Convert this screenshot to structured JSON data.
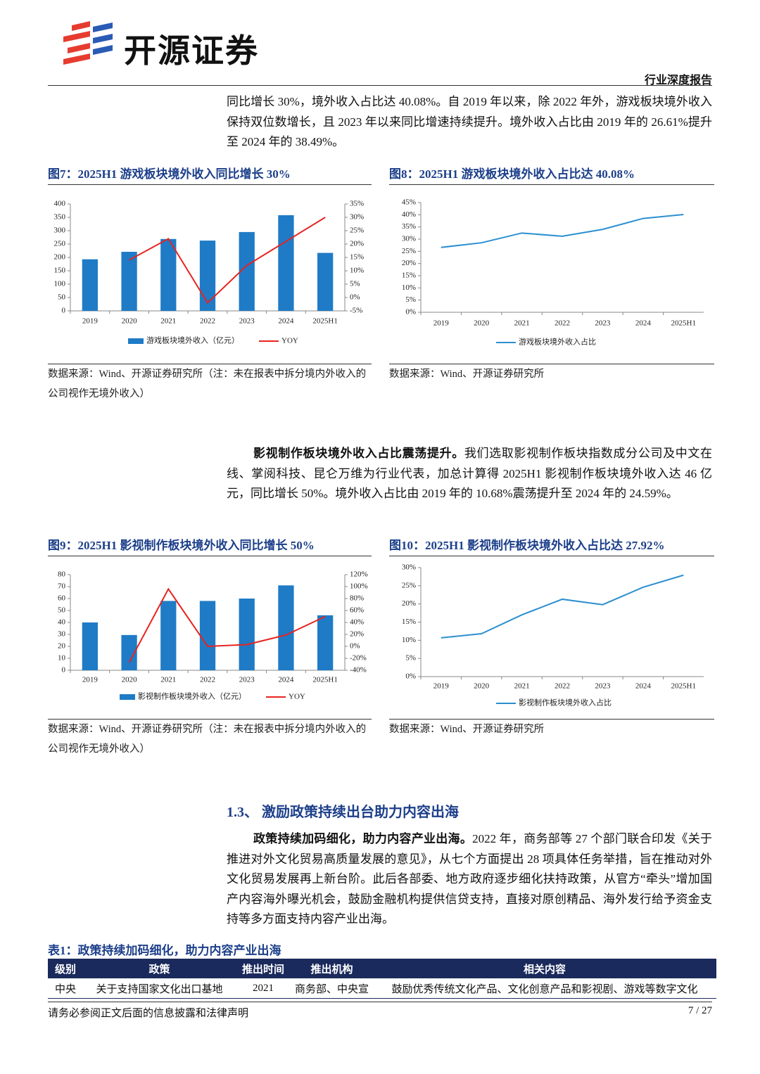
{
  "header": {
    "brand": "开源证券",
    "report_type": "行业深度报告"
  },
  "paragraphs": [
    {
      "text": "同比增长 30%，境外收入占比达 40.08%。自 2019 年以来，除 2022 年外，游戏板块境外收入保持双位数增长，且 2023 年以来同比增速持续提升。境外收入占比由 2019 年的 26.61%提升至 2024 年的 38.49%。"
    },
    {
      "lead": "影视制作板块境外收入占比震荡提升。",
      "text": "我们选取影视制作板块指数成分公司及中文在线、掌阅科技、昆仑万维为行业代表，加总计算得 2025H1 影视制作板块境外收入达 46 亿元，同比增长 50%。境外收入占比由 2019 年的 10.68%震荡提升至 2024 年的 24.59%。"
    },
    {
      "lead": "政策持续加码细化，助力内容产业出海。",
      "text": "2022 年，商务部等 27 个部门联合印发《关于推进对外文化贸易高质量发展的意见》，从七个方面提出 28 项具体任务举措，旨在推动对外文化贸易发展再上新台阶。此后各部委、地方政府逐步细化扶持政策，从官方“牵头”增加国产内容海外曝光机会，鼓励金融机构提供信贷支持，直接对原创精品、海外发行给予资金支持等多方面支持内容产业出海。"
    }
  ],
  "figures": [
    {
      "title": "图7：2025H1 游戏板块境外收入同比增长 30%",
      "source": "数据来源：Wind、开源证券研究所（注：未在报表中拆分境内外收入的公司视作无境外收入）"
    },
    {
      "title": "图8：2025H1 游戏板块境外收入占比达 40.08%",
      "source": "数据来源：Wind、开源证券研究所"
    },
    {
      "title": "图9：2025H1 影视制作板块境外收入同比增长 50%",
      "source": "数据来源：Wind、开源证券研究所（注：未在报表中拆分境内外收入的公司视作无境外收入）"
    },
    {
      "title": "图10：2025H1 影视制作板块境外收入占比达 27.92%",
      "source": "数据来源：Wind、开源证券研究所"
    }
  ],
  "chart_data": [
    {
      "type": "combo",
      "categories": [
        "2019",
        "2020",
        "2021",
        "2022",
        "2023",
        "2024",
        "2025H1"
      ],
      "series": [
        {
          "name": "游戏板块境外收入（亿元）",
          "color": "#1f7bc6",
          "values": [
            193,
            221,
            269,
            263,
            295,
            358,
            217
          ]
        },
        {
          "name": "YOY",
          "color": "#e8231f",
          "axis": "y2",
          "values": [
            null,
            14,
            22,
            -2,
            12,
            21,
            30
          ]
        }
      ],
      "ylim": [
        0,
        400
      ],
      "yticks": [
        0,
        50,
        100,
        150,
        200,
        250,
        300,
        350,
        400
      ],
      "y2lim": [
        -5,
        35
      ],
      "y2ticks": [
        {
          "value": -5,
          "label": "-5%"
        },
        {
          "value": 0,
          "label": "0%"
        },
        {
          "value": 5,
          "label": "5%"
        },
        {
          "value": 10,
          "label": "10%"
        },
        {
          "value": 15,
          "label": "15%"
        },
        {
          "value": 20,
          "label": "20%"
        },
        {
          "value": 25,
          "label": "25%"
        },
        {
          "value": 30,
          "label": "30%"
        },
        {
          "value": 35,
          "label": "35%"
        }
      ]
    },
    {
      "type": "line",
      "categories": [
        "2019",
        "2020",
        "2021",
        "2022",
        "2023",
        "2024",
        "2025H1"
      ],
      "series": [
        {
          "name": "游戏板块境外收入占比",
          "color": "#2b8fd0",
          "values": [
            26.61,
            28.5,
            32.5,
            31.2,
            34,
            38.49,
            40.08
          ]
        }
      ],
      "ylim": [
        0,
        45
      ],
      "yticks": [
        {
          "value": 0,
          "label": "0%"
        },
        {
          "value": 5,
          "label": "5%"
        },
        {
          "value": 10,
          "label": "10%"
        },
        {
          "value": 15,
          "label": "15%"
        },
        {
          "value": 20,
          "label": "20%"
        },
        {
          "value": 25,
          "label": "25%"
        },
        {
          "value": 30,
          "label": "30%"
        },
        {
          "value": 35,
          "label": "35%"
        },
        {
          "value": 40,
          "label": "40%"
        },
        {
          "value": 45,
          "label": "45%"
        }
      ]
    },
    {
      "type": "combo",
      "categories": [
        "2019",
        "2020",
        "2021",
        "2022",
        "2023",
        "2024",
        "2025H1"
      ],
      "series": [
        {
          "name": "影视制作板块境外收入（亿元）",
          "color": "#1f7bc6",
          "values": [
            40,
            29.5,
            58,
            58,
            60,
            71,
            46
          ]
        },
        {
          "name": "YOY",
          "color": "#e8231f",
          "axis": "y2",
          "values": [
            null,
            -27,
            96,
            0,
            3,
            19,
            50
          ]
        }
      ],
      "ylim": [
        0,
        80
      ],
      "yticks": [
        0,
        10,
        20,
        30,
        40,
        50,
        60,
        70,
        80
      ],
      "y2lim": [
        -40,
        120
      ],
      "y2ticks": [
        {
          "value": -40,
          "label": "-40%"
        },
        {
          "value": -20,
          "label": "-20%"
        },
        {
          "value": 0,
          "label": "0%"
        },
        {
          "value": 20,
          "label": "20%"
        },
        {
          "value": 40,
          "label": "40%"
        },
        {
          "value": 60,
          "label": "60%"
        },
        {
          "value": 80,
          "label": "80%"
        },
        {
          "value": 100,
          "label": "100%"
        },
        {
          "value": 120,
          "label": "120%"
        }
      ]
    },
    {
      "type": "line",
      "categories": [
        "2019",
        "2020",
        "2021",
        "2022",
        "2023",
        "2024",
        "2025H1"
      ],
      "series": [
        {
          "name": "影视制作板块境外收入占比",
          "color": "#2b8fd0",
          "values": [
            10.68,
            11.8,
            17,
            21.3,
            19.8,
            24.59,
            27.92
          ]
        }
      ],
      "ylim": [
        0,
        30
      ],
      "yticks": [
        {
          "value": 0,
          "label": "0%"
        },
        {
          "value": 5,
          "label": "5%"
        },
        {
          "value": 10,
          "label": "10%"
        },
        {
          "value": 15,
          "label": "15%"
        },
        {
          "value": 20,
          "label": "20%"
        },
        {
          "value": 25,
          "label": "25%"
        },
        {
          "value": 30,
          "label": "30%"
        }
      ]
    }
  ],
  "section": {
    "title": "1.3、 激励政策持续出台助力内容出海"
  },
  "table": {
    "title": "表1：政策持续加码细化，助力内容产业出海",
    "header": [
      "级别",
      "政策",
      "推出时间",
      "推出机构",
      "相关内容"
    ],
    "rows": [
      [
        "中央",
        "关于支持国家文化出口基地",
        "2021",
        "商务部、中央宣",
        "鼓励优秀传统文化产品、文化创意产品和影视剧、游戏等数字文化"
      ]
    ]
  },
  "footer": {
    "disclaimer": "请务必参阅正文后面的信息披露和法律声明",
    "page": "7 / 27"
  }
}
